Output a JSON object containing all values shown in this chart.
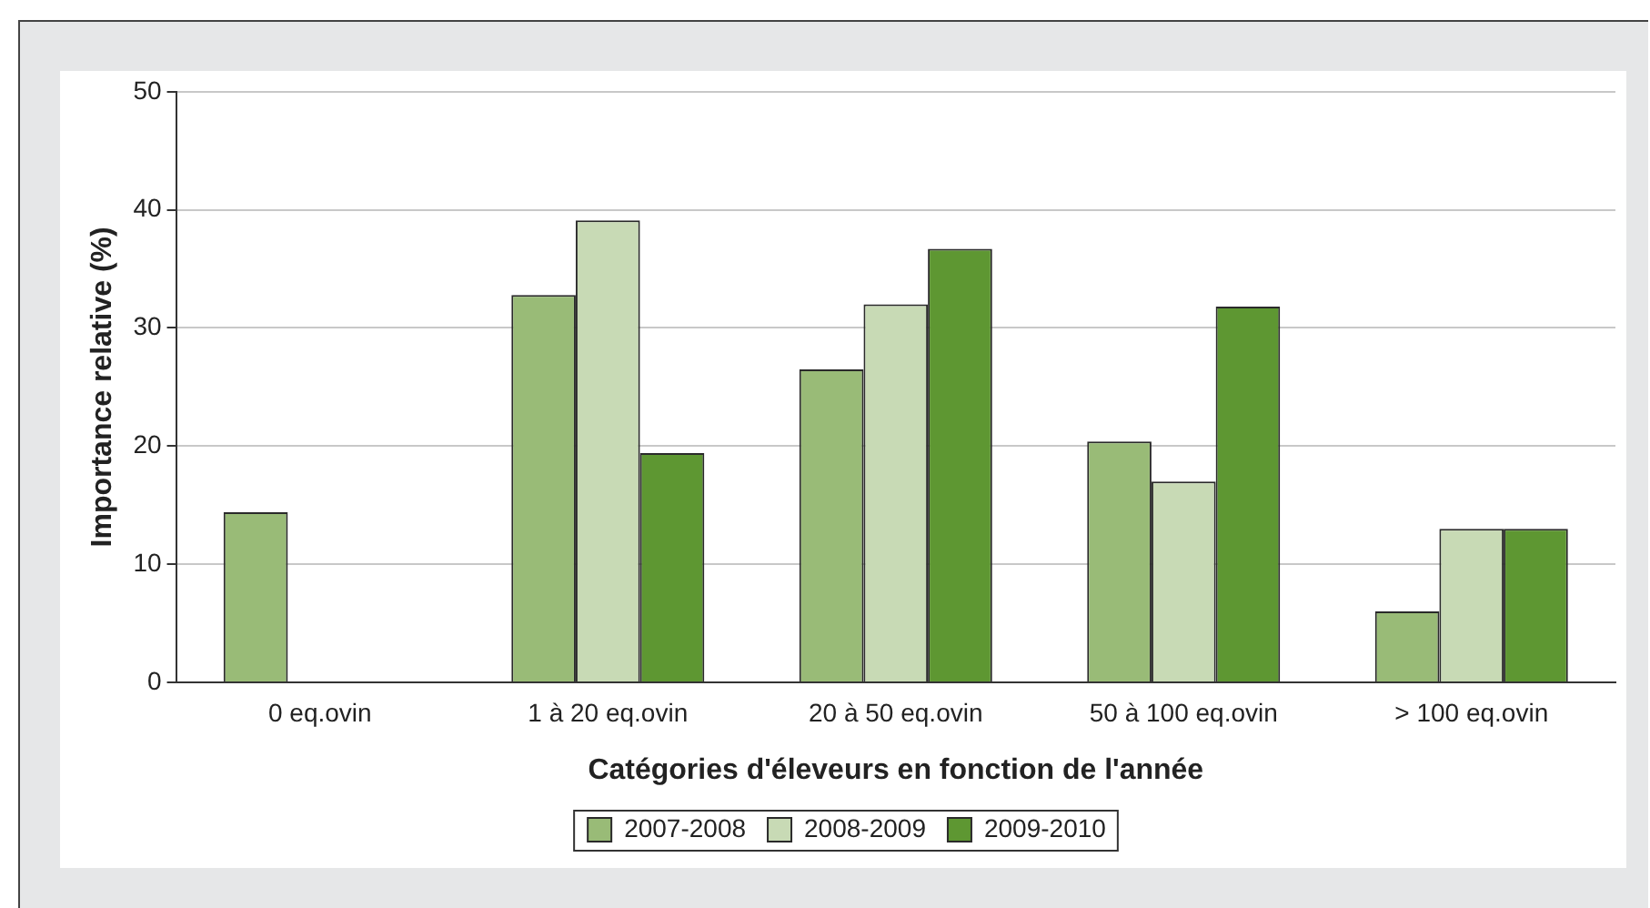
{
  "chart_data": {
    "type": "bar",
    "xlabel": "Catégories d'éleveurs en fonction de l'année",
    "ylabel": "Importance relative (%)",
    "categories": [
      "0 eq.ovin",
      "1 à 20 eq.ovin",
      "20 à 50 eq.ovin",
      "50 à 100 eq.ovin",
      "> 100 eq.ovin"
    ],
    "series": [
      {
        "name": "2007-2008",
        "color": "#99bb77",
        "values": [
          14.4,
          32.8,
          26.5,
          20.4,
          6.0
        ]
      },
      {
        "name": "2008-2009",
        "color": "#c8dab5",
        "values": [
          0,
          39.1,
          32.0,
          17.0,
          13.0
        ]
      },
      {
        "name": "2009-2010",
        "color": "#5e9732",
        "values": [
          0,
          19.4,
          36.7,
          31.8,
          13.0
        ]
      }
    ],
    "ylim": [
      0,
      50
    ],
    "yticks": [
      0,
      10,
      20,
      30,
      40,
      50
    ],
    "grid": "y",
    "legend": "bottom"
  }
}
